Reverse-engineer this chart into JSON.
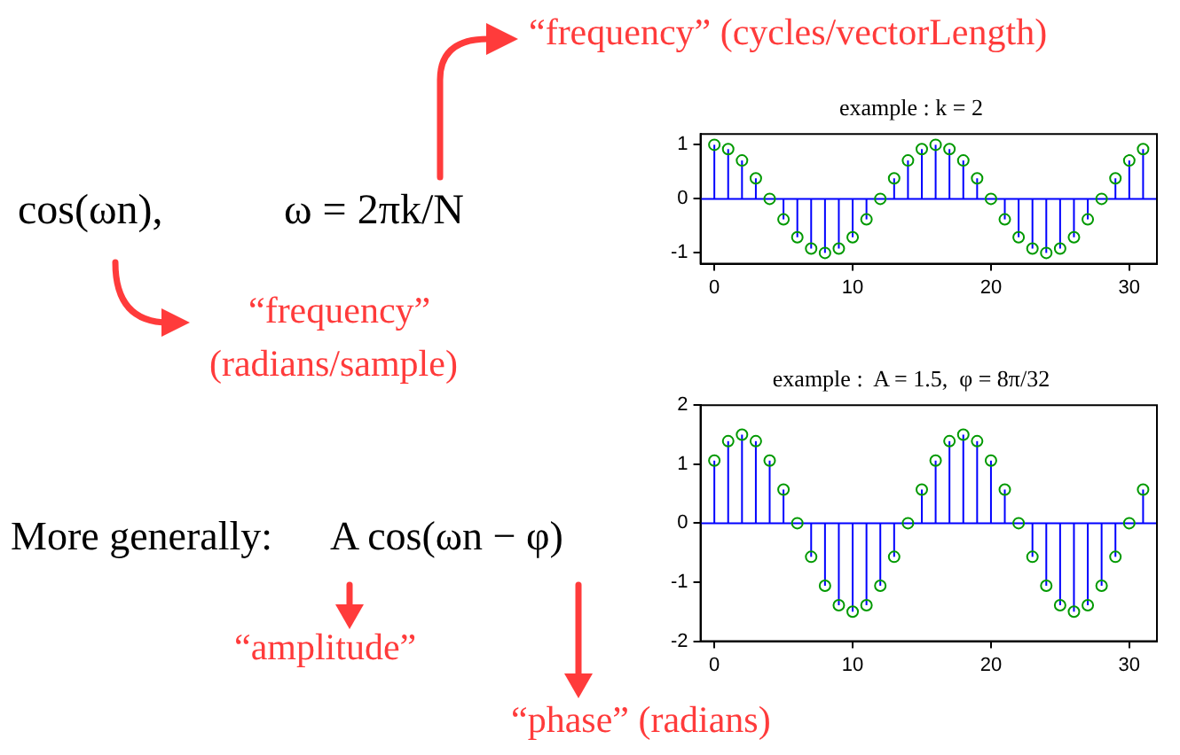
{
  "chart_data": [
    {
      "type": "other",
      "annotations": [
        "“frequency” (cycles/vectorLength)",
        "cos(ωn),",
        "ω = 2πk/N",
        "“frequency”",
        "(radians/sample)",
        "More generally:",
        "A cos(ωn − φ)",
        "“amplitude”",
        "“phase” (radians)"
      ]
    },
    {
      "type": "lollipop",
      "title": "example : k = 2",
      "x": [
        0,
        1,
        2,
        3,
        4,
        5,
        6,
        7,
        8,
        9,
        10,
        11,
        12,
        13,
        14,
        15,
        16,
        17,
        18,
        19,
        20,
        21,
        22,
        23,
        24,
        25,
        26,
        27,
        28,
        29,
        30,
        31
      ],
      "values": [
        1,
        0.92,
        0.71,
        0.38,
        0,
        -0.38,
        -0.71,
        -0.92,
        -1,
        -0.92,
        -0.71,
        -0.38,
        0,
        0.38,
        0.71,
        0.92,
        1,
        0.92,
        0.71,
        0.38,
        0,
        -0.38,
        -0.71,
        -0.92,
        -1,
        -0.92,
        -0.71,
        -0.38,
        0,
        0.38,
        0.71,
        0.92
      ],
      "color": "#009900",
      "ref_lines": [
        {
          "axis": "y",
          "value": 0,
          "color": "#0000ff"
        }
      ],
      "marker": "circle",
      "xlim": [
        -1,
        32
      ],
      "xticks": [
        0,
        10,
        20,
        30
      ],
      "ylim": [
        -1.2,
        1.2
      ],
      "yticks": [
        -1,
        0,
        1
      ],
      "grid": false
    },
    {
      "type": "lollipop",
      "title": "example :  A = 1.5,  φ = 8π/32",
      "x": [
        0,
        1,
        2,
        3,
        4,
        5,
        6,
        7,
        8,
        9,
        10,
        11,
        12,
        13,
        14,
        15,
        16,
        17,
        18,
        19,
        20,
        21,
        22,
        23,
        24,
        25,
        26,
        27,
        28,
        29,
        30,
        31
      ],
      "values": [
        1.06,
        1.39,
        1.5,
        1.39,
        1.06,
        0.57,
        0,
        -0.57,
        -1.06,
        -1.39,
        -1.5,
        -1.39,
        -1.06,
        -0.57,
        0,
        0.57,
        1.06,
        1.39,
        1.5,
        1.39,
        1.06,
        0.57,
        0,
        -0.57,
        -1.06,
        -1.39,
        -1.5,
        -1.39,
        -1.06,
        -0.57,
        0,
        0.57
      ],
      "color": "#009900",
      "ref_lines": [
        {
          "axis": "y",
          "value": 0,
          "color": "#0000ff"
        }
      ],
      "marker": "circle",
      "xlim": [
        -1,
        32
      ],
      "xticks": [
        0,
        10,
        20,
        30
      ],
      "ylim": [
        -2,
        2
      ],
      "yticks": [
        -2,
        -1,
        0,
        1,
        2
      ],
      "grid": false
    }
  ]
}
